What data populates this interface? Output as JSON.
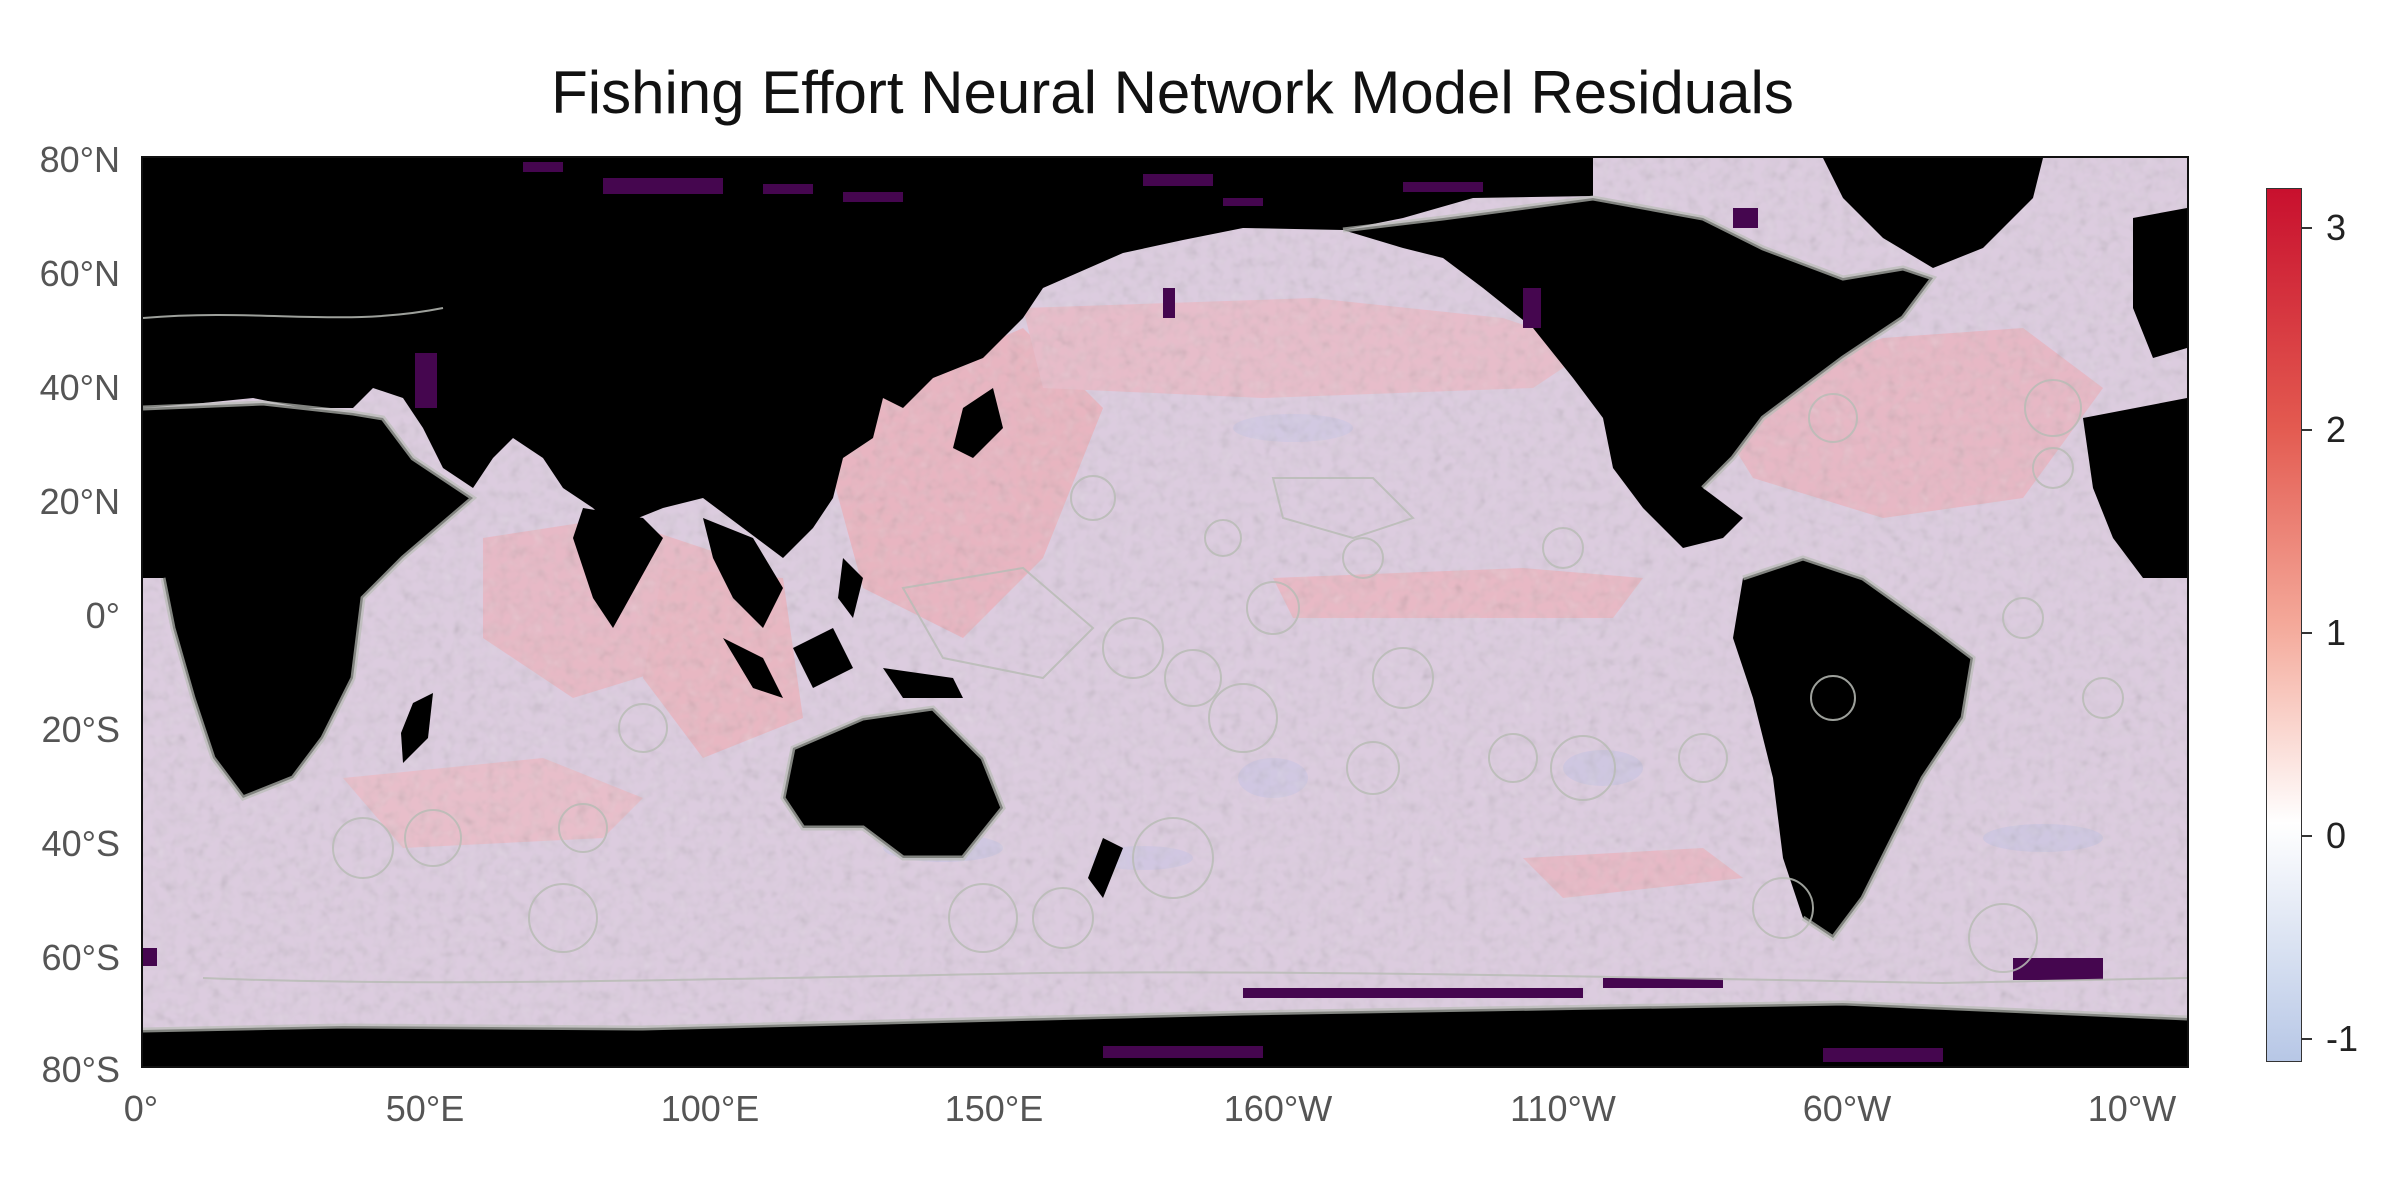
{
  "title": "Fishing Effort Neural Network Model Residuals",
  "latitude_labels": [
    "80°N",
    "60°N",
    "40°N",
    "20°N",
    "0°",
    "20°S",
    "40°S",
    "60°S",
    "80°S"
  ],
  "longitude_labels": [
    "0°",
    "50°E",
    "100°E",
    "150°E",
    "160°W",
    "110°W",
    "60°W",
    "10°W"
  ],
  "colorbar": {
    "ticks": [
      "3",
      "2",
      "1",
      "0",
      "-1"
    ],
    "min": -1.2,
    "max": 3.2,
    "colors": [
      "#b7c7e6",
      "#ffffff",
      "#f4a99a",
      "#e35a50",
      "#c8102e"
    ]
  },
  "colors": {
    "land": "#000000",
    "ocean_base": "#dcccdf",
    "positive_residual": "#f0a0a8",
    "negative_residual": "#c4c4e2",
    "missing": "#45064f",
    "boundaries": "#b9bcb6"
  }
}
